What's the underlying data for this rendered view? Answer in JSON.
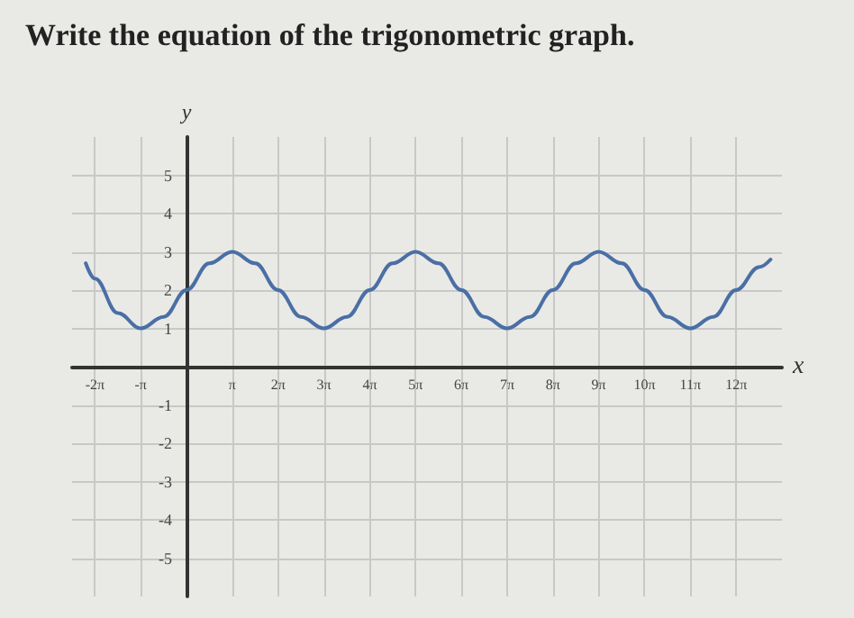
{
  "chart_data": {
    "type": "line",
    "title": "Write the equation of the trigonometric graph.",
    "xlabel": "x",
    "ylabel": "y",
    "x": [
      -6.91,
      -6.28,
      -4.71,
      -3.14,
      -1.57,
      0,
      1.57,
      3.14,
      4.71,
      6.28,
      7.85,
      9.42,
      11.0,
      12.57,
      14.14,
      15.71,
      17.28,
      18.85,
      20.42,
      21.99,
      23.56,
      25.13,
      26.7,
      28.27,
      29.85,
      31.42,
      32.99,
      34.56,
      36.13,
      37.7,
      39.27,
      40.06
    ],
    "series": [
      {
        "color": "#4a6fa5",
        "values": [
          2.7,
          2.3,
          1.4,
          1,
          1.3,
          2,
          2.7,
          3,
          2.7,
          2,
          1.3,
          1,
          1.3,
          2,
          2.7,
          3,
          2.7,
          2,
          1.3,
          1,
          1.3,
          2,
          2.7,
          3,
          2.7,
          2,
          1.3,
          1,
          1.3,
          2,
          2.6,
          2.8
        ]
      }
    ],
    "xlim": [
      -7.85,
      40.84
    ],
    "ylim": [
      -6,
      6
    ],
    "xticks": [
      {
        "value": -6.2832,
        "label": "-2π"
      },
      {
        "value": -3.1416,
        "label": "-π"
      },
      {
        "value": 3.1416,
        "label": "π"
      },
      {
        "value": 6.2832,
        "label": "2π"
      },
      {
        "value": 9.4248,
        "label": "3π"
      },
      {
        "value": 12.5664,
        "label": "4π"
      },
      {
        "value": 15.708,
        "label": "5π"
      },
      {
        "value": 18.8496,
        "label": "6π"
      },
      {
        "value": 21.9911,
        "label": "7π"
      },
      {
        "value": 25.1327,
        "label": "8π"
      },
      {
        "value": 28.2743,
        "label": "9π"
      },
      {
        "value": 31.4159,
        "label": "10π"
      },
      {
        "value": 34.5575,
        "label": "11π"
      },
      {
        "value": 37.6991,
        "label": "12π"
      }
    ],
    "yticks": [
      -5,
      -4,
      -3,
      -2,
      -1,
      1,
      2,
      3,
      4,
      5
    ],
    "grid": true,
    "marker": "none",
    "line_style": "solid"
  }
}
